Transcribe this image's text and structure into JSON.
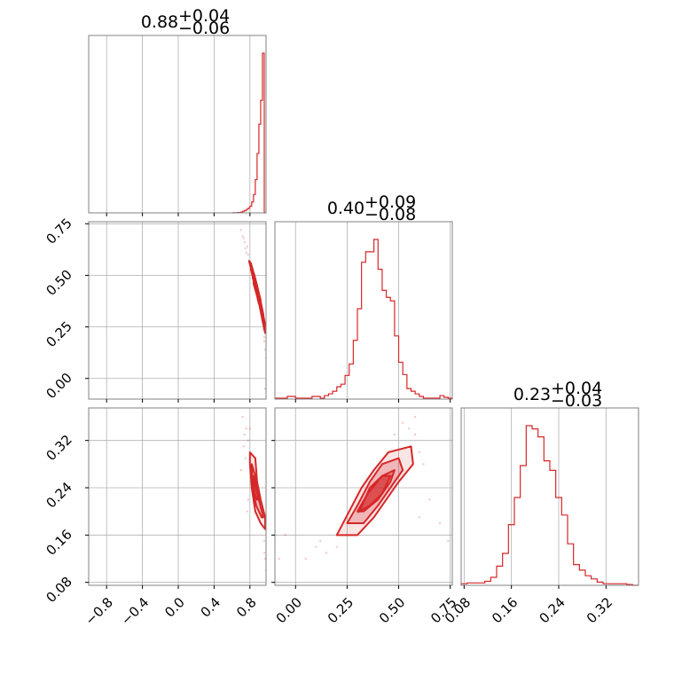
{
  "chart_data": {
    "type": "corner",
    "color": "#d62728",
    "grid": true,
    "parameters": [
      {
        "title": {
          "median": "0.88",
          "plus": "+0.04",
          "minus": "−0.06"
        },
        "range": [
          -1.0,
          0.98
        ],
        "ticks": [
          -0.8,
          -0.4,
          0.0,
          0.4,
          0.8
        ],
        "tick_labels": [
          "−0.8",
          "−0.4",
          "0.0",
          "0.4",
          "0.8"
        ],
        "histogram": {
          "edges": [
            0.6,
            0.62,
            0.64,
            0.66,
            0.68,
            0.7,
            0.72,
            0.74,
            0.76,
            0.78,
            0.8,
            0.82,
            0.84,
            0.86,
            0.88,
            0.9,
            0.92,
            0.94,
            0.96,
            0.98
          ],
          "counts": [
            0,
            1,
            1,
            2,
            2,
            5,
            10,
            14,
            22,
            30,
            42,
            68,
            115,
            208,
            372,
            555,
            705,
            1000,
            0
          ]
        }
      },
      {
        "title": {
          "median": "0.40",
          "plus": "+0.09",
          "minus": "−0.08"
        },
        "range": [
          -0.1,
          0.76
        ],
        "ticks": [
          0.0,
          0.25,
          0.5,
          0.75
        ],
        "tick_labels": [
          "0.00",
          "0.25",
          "0.50",
          "0.75"
        ],
        "histogram": {
          "edges": [
            -0.1,
            -0.08,
            -0.06,
            -0.04,
            -0.02,
            0.0,
            0.02,
            0.04,
            0.06,
            0.08,
            0.1,
            0.12,
            0.14,
            0.16,
            0.18,
            0.2,
            0.22,
            0.24,
            0.26,
            0.28,
            0.3,
            0.32,
            0.34,
            0.36,
            0.38,
            0.4,
            0.42,
            0.44,
            0.46,
            0.48,
            0.5,
            0.52,
            0.54,
            0.56,
            0.58,
            0.6,
            0.62,
            0.64,
            0.66,
            0.68,
            0.7,
            0.72,
            0.74,
            0.76
          ],
          "counts": [
            5,
            5,
            5,
            15,
            15,
            5,
            5,
            5,
            5,
            15,
            15,
            5,
            20,
            30,
            45,
            70,
            85,
            135,
            200,
            335,
            515,
            780,
            840,
            840,
            910,
            740,
            620,
            580,
            560,
            360,
            210,
            140,
            60,
            45,
            30,
            15,
            5,
            5,
            5,
            5,
            20,
            10,
            5
          ]
        }
      },
      {
        "title": {
          "median": "0.23",
          "plus": "+0.04",
          "minus": "−0.03"
        },
        "range": [
          0.075,
          0.375
        ],
        "ticks": [
          0.08,
          0.16,
          0.24,
          0.32
        ],
        "tick_labels": [
          "0.08",
          "0.16",
          "0.24",
          "0.32"
        ],
        "histogram": {
          "edges": [
            0.075,
            0.085,
            0.095,
            0.105,
            0.115,
            0.125,
            0.135,
            0.145,
            0.155,
            0.165,
            0.175,
            0.185,
            0.195,
            0.205,
            0.215,
            0.225,
            0.235,
            0.245,
            0.255,
            0.265,
            0.275,
            0.285,
            0.295,
            0.305,
            0.315,
            0.325,
            0.335,
            0.345,
            0.355,
            0.365,
            0.375
          ],
          "counts": [
            10,
            15,
            15,
            15,
            25,
            50,
            120,
            200,
            380,
            550,
            750,
            1000,
            980,
            930,
            780,
            720,
            550,
            440,
            260,
            130,
            95,
            60,
            40,
            20,
            10,
            10,
            10,
            10,
            5,
            0
          ]
        }
      }
    ],
    "pairs": [
      {
        "row": 1,
        "col": 0,
        "x_param": 0,
        "y_param": 1,
        "y_ticks": [
          0.0,
          0.25,
          0.5,
          0.75
        ],
        "y_tick_labels": [
          "0.00",
          "0.25",
          "0.50",
          "0.75"
        ],
        "contours": [
          [
            [
              0.79,
              0.57
            ],
            [
              0.82,
              0.52
            ],
            [
              0.86,
              0.44
            ],
            [
              0.9,
              0.37
            ],
            [
              0.94,
              0.28
            ],
            [
              0.97,
              0.22
            ],
            [
              0.97,
              0.26
            ],
            [
              0.93,
              0.35
            ],
            [
              0.89,
              0.43
            ],
            [
              0.85,
              0.5
            ],
            [
              0.81,
              0.56
            ],
            [
              0.79,
              0.57
            ]
          ],
          [
            [
              0.81,
              0.53
            ],
            [
              0.84,
              0.48
            ],
            [
              0.88,
              0.41
            ],
            [
              0.92,
              0.33
            ],
            [
              0.95,
              0.27
            ],
            [
              0.95,
              0.31
            ],
            [
              0.91,
              0.39
            ],
            [
              0.87,
              0.46
            ],
            [
              0.83,
              0.52
            ],
            [
              0.81,
              0.53
            ]
          ],
          [
            [
              0.84,
              0.46
            ],
            [
              0.88,
              0.4
            ],
            [
              0.91,
              0.35
            ],
            [
              0.92,
              0.38
            ],
            [
              0.89,
              0.43
            ],
            [
              0.85,
              0.48
            ],
            [
              0.84,
              0.46
            ]
          ]
        ],
        "core": [
          [
            0.83,
            0.49
          ],
          [
            0.87,
            0.42
          ],
          [
            0.9,
            0.36
          ],
          [
            0.91,
            0.39
          ],
          [
            0.88,
            0.45
          ],
          [
            0.85,
            0.5
          ],
          [
            0.83,
            0.49
          ]
        ],
        "scatter": [
          [
            0.7,
            0.72
          ],
          [
            0.72,
            0.69
          ],
          [
            0.74,
            0.66
          ],
          [
            0.75,
            0.63
          ],
          [
            0.73,
            0.68
          ],
          [
            0.76,
            0.61
          ],
          [
            0.78,
            0.6
          ],
          [
            0.77,
            0.64
          ],
          [
            0.8,
            0.55
          ],
          [
            0.96,
            0.18
          ],
          [
            0.97,
            0.14
          ],
          [
            0.98,
            0.1
          ],
          [
            0.97,
            -0.05
          ],
          [
            0.98,
            -0.1
          ],
          [
            0.96,
            0.2
          ],
          [
            0.95,
            0.24
          ]
        ]
      },
      {
        "row": 2,
        "col": 0,
        "x_param": 0,
        "y_param": 2,
        "y_ticks": [
          0.08,
          0.16,
          0.24,
          0.32
        ],
        "y_tick_labels": [
          "0.08",
          "0.16",
          "0.24",
          "0.32"
        ],
        "contours": [
          [
            [
              0.8,
              0.3
            ],
            [
              0.86,
              0.29
            ],
            [
              0.88,
              0.25
            ],
            [
              0.92,
              0.22
            ],
            [
              0.97,
              0.19
            ],
            [
              0.97,
              0.17
            ],
            [
              0.92,
              0.18
            ],
            [
              0.86,
              0.2
            ],
            [
              0.82,
              0.24
            ],
            [
              0.8,
              0.28
            ],
            [
              0.8,
              0.3
            ]
          ],
          [
            [
              0.82,
              0.28
            ],
            [
              0.86,
              0.26
            ],
            [
              0.9,
              0.22
            ],
            [
              0.95,
              0.19
            ],
            [
              0.93,
              0.19
            ],
            [
              0.87,
              0.21
            ],
            [
              0.83,
              0.24
            ],
            [
              0.82,
              0.28
            ]
          ],
          [
            [
              0.84,
              0.26
            ],
            [
              0.87,
              0.24
            ],
            [
              0.9,
              0.22
            ],
            [
              0.88,
              0.22
            ],
            [
              0.85,
              0.23
            ],
            [
              0.84,
              0.26
            ]
          ]
        ],
        "core": [
          [
            0.84,
            0.26
          ],
          [
            0.87,
            0.24
          ],
          [
            0.9,
            0.22
          ],
          [
            0.88,
            0.22
          ],
          [
            0.85,
            0.23
          ],
          [
            0.84,
            0.26
          ]
        ],
        "scatter": [
          [
            0.72,
            0.36
          ],
          [
            0.74,
            0.33
          ],
          [
            0.76,
            0.34
          ],
          [
            0.73,
            0.31
          ],
          [
            0.78,
            0.32
          ],
          [
            0.75,
            0.29
          ],
          [
            0.7,
            0.27
          ],
          [
            0.8,
            0.34
          ],
          [
            0.96,
            0.15
          ],
          [
            0.97,
            0.12
          ],
          [
            0.98,
            0.1
          ],
          [
            0.96,
            0.13
          ],
          [
            0.78,
            0.22
          ],
          [
            0.77,
            0.2
          ]
        ]
      },
      {
        "row": 2,
        "col": 1,
        "x_param": 1,
        "y_param": 2,
        "contours": [
          [
            [
              0.2,
              0.16
            ],
            [
              0.26,
              0.2
            ],
            [
              0.32,
              0.24
            ],
            [
              0.38,
              0.27
            ],
            [
              0.45,
              0.3
            ],
            [
              0.56,
              0.31
            ],
            [
              0.57,
              0.28
            ],
            [
              0.5,
              0.25
            ],
            [
              0.44,
              0.22
            ],
            [
              0.38,
              0.19
            ],
            [
              0.3,
              0.16
            ],
            [
              0.2,
              0.16
            ]
          ],
          [
            [
              0.25,
              0.18
            ],
            [
              0.3,
              0.21
            ],
            [
              0.36,
              0.25
            ],
            [
              0.42,
              0.28
            ],
            [
              0.5,
              0.29
            ],
            [
              0.52,
              0.27
            ],
            [
              0.46,
              0.24
            ],
            [
              0.4,
              0.21
            ],
            [
              0.33,
              0.18
            ],
            [
              0.25,
              0.18
            ]
          ],
          [
            [
              0.3,
              0.2
            ],
            [
              0.35,
              0.23
            ],
            [
              0.42,
              0.26
            ],
            [
              0.48,
              0.27
            ],
            [
              0.46,
              0.25
            ],
            [
              0.4,
              0.22
            ],
            [
              0.33,
              0.2
            ],
            [
              0.3,
              0.2
            ]
          ]
        ],
        "core": [
          [
            0.31,
            0.2
          ],
          [
            0.36,
            0.24
          ],
          [
            0.42,
            0.26
          ],
          [
            0.46,
            0.26
          ],
          [
            0.42,
            0.23
          ],
          [
            0.36,
            0.21
          ],
          [
            0.31,
            0.2
          ]
        ],
        "scatter": [
          [
            0.55,
            0.34
          ],
          [
            0.58,
            0.33
          ],
          [
            0.6,
            0.3
          ],
          [
            0.62,
            0.28
          ],
          [
            0.52,
            0.35
          ],
          [
            0.48,
            0.33
          ],
          [
            0.2,
            0.14
          ],
          [
            0.15,
            0.13
          ],
          [
            0.1,
            0.14
          ],
          [
            -0.05,
            0.16
          ],
          [
            -0.08,
            0.12
          ],
          [
            0.6,
            0.19
          ],
          [
            0.65,
            0.22
          ],
          [
            0.7,
            0.18
          ],
          [
            0.74,
            0.15
          ],
          [
            0.05,
            0.12
          ],
          [
            0.12,
            0.15
          ],
          [
            0.58,
            0.36
          ]
        ]
      }
    ]
  }
}
